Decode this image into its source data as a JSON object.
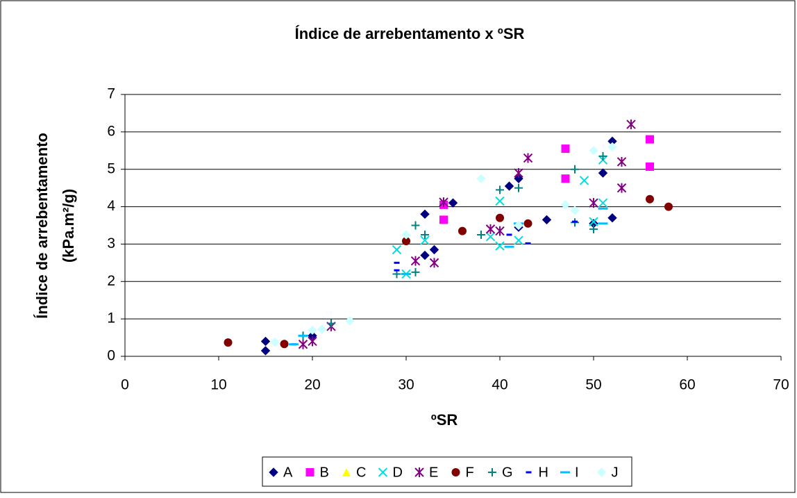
{
  "chart_data": {
    "type": "scatter",
    "title": "Índice de arrebentamento x ºSR",
    "x_label": "ºSR",
    "y_label": [
      "Índice de arrebentamento",
      "(kPa.m²/g)"
    ],
    "xlim": [
      0,
      70
    ],
    "xticks": [
      0,
      10,
      20,
      30,
      40,
      50,
      60,
      70
    ],
    "ylim": [
      0,
      7
    ],
    "yticks": [
      0,
      1,
      2,
      3,
      4,
      5,
      6,
      7
    ],
    "grid": true,
    "legend": "bottom",
    "series": [
      {
        "name": "A",
        "color": "#000080",
        "marker": "diamond",
        "x": [
          15,
          15,
          20,
          32,
          32,
          33,
          35,
          41,
          42,
          42,
          45,
          50,
          51,
          52,
          52
        ],
        "values": [
          0.4,
          0.15,
          0.55,
          3.8,
          2.7,
          2.85,
          4.1,
          4.55,
          4.75,
          3.45,
          3.65,
          3.55,
          4.9,
          3.7,
          5.75
        ]
      },
      {
        "name": "B",
        "color": "#ff00ff",
        "marker": "square",
        "x": [
          34,
          34,
          47,
          47,
          56,
          56
        ],
        "values": [
          4.05,
          3.65,
          5.55,
          4.75,
          5.8,
          5.07
        ]
      },
      {
        "name": "C",
        "color": "#ffff00",
        "marker": "triangle",
        "x": [],
        "values": []
      },
      {
        "name": "D",
        "color": "#00e0e0",
        "marker": "x",
        "x": [
          29,
          30,
          32,
          39,
          40,
          40,
          42,
          49,
          50,
          51,
          51
        ],
        "values": [
          2.85,
          2.2,
          3.1,
          3.2,
          4.15,
          2.95,
          3.1,
          4.7,
          3.6,
          4.1,
          5.25
        ]
      },
      {
        "name": "E",
        "color": "#800080",
        "marker": "star",
        "x": [
          19,
          20,
          22,
          31,
          33,
          34,
          39,
          40,
          42,
          43,
          50,
          53,
          53,
          54
        ],
        "values": [
          0.32,
          0.4,
          0.8,
          2.55,
          2.5,
          4.12,
          3.4,
          3.35,
          4.9,
          5.3,
          4.1,
          4.5,
          5.2,
          6.2
        ]
      },
      {
        "name": "F",
        "color": "#800000",
        "marker": "circle",
        "x": [
          11,
          17,
          30,
          36,
          40,
          43,
          56,
          58
        ],
        "values": [
          0.37,
          0.33,
          3.08,
          3.35,
          3.7,
          3.55,
          4.2,
          4.0
        ]
      },
      {
        "name": "G",
        "color": "#008080",
        "marker": "plus",
        "x": [
          19,
          22,
          29,
          31,
          31,
          32,
          38,
          40,
          42,
          48,
          48,
          50,
          51
        ],
        "values": [
          0.55,
          0.88,
          2.2,
          3.5,
          2.25,
          3.25,
          3.25,
          4.45,
          4.5,
          5.0,
          3.58,
          3.4,
          5.35
        ]
      },
      {
        "name": "H",
        "color": "#0000ff",
        "marker": "dash",
        "x": [
          18,
          29,
          29,
          41,
          43,
          48
        ],
        "values": [
          0.32,
          2.5,
          2.3,
          3.25,
          3.02,
          3.6
        ]
      },
      {
        "name": "I",
        "color": "#00bfff",
        "marker": "longdash",
        "x": [
          18,
          19,
          30,
          41,
          42,
          51,
          51
        ],
        "values": [
          0.32,
          0.55,
          2.2,
          2.93,
          3.55,
          3.95,
          3.55
        ]
      },
      {
        "name": "J",
        "color": "#ccffff",
        "marker": "diamond",
        "x": [
          16,
          20,
          21,
          24,
          30,
          38,
          42,
          47,
          48,
          50,
          52
        ],
        "values": [
          0.38,
          0.7,
          0.72,
          0.95,
          3.25,
          4.75,
          3.5,
          4.05,
          3.9,
          5.5,
          5.6
        ]
      }
    ]
  }
}
